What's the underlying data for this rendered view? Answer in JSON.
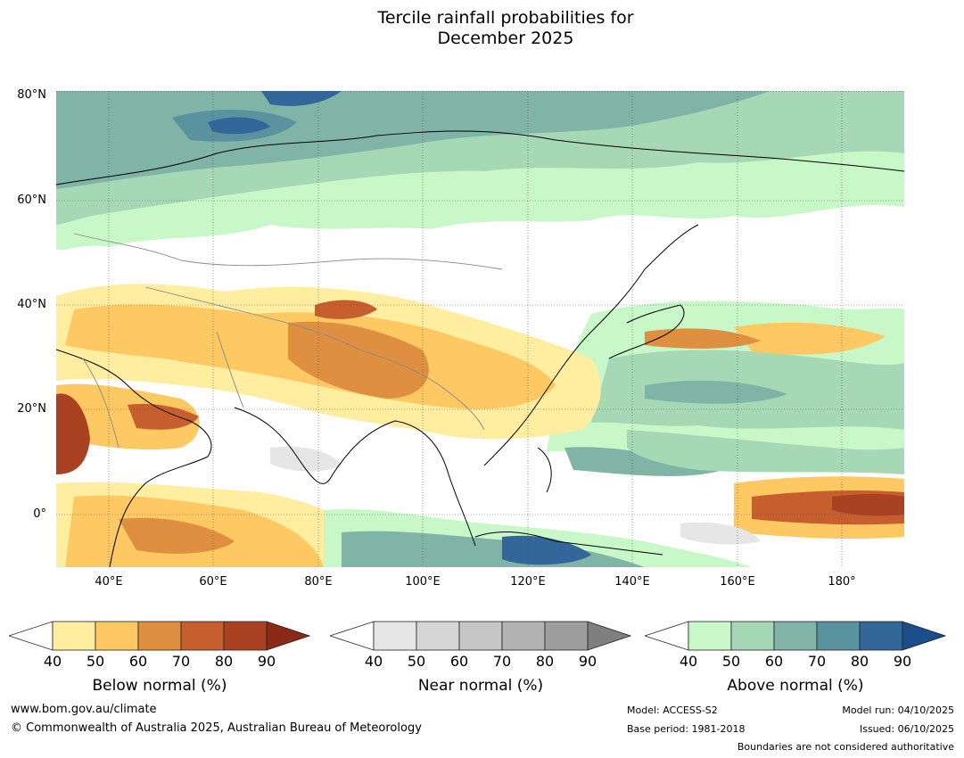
{
  "title_line1": "Tercile rainfall probabilities for",
  "title_line2": "December 2025",
  "map": {
    "lat_labels": [
      "80°N",
      "60°N",
      "40°N",
      "20°N",
      "0°"
    ],
    "lon_labels": [
      "40°E",
      "60°E",
      "80°E",
      "100°E",
      "120°E",
      "140°E",
      "160°E",
      "180°"
    ]
  },
  "legends": [
    {
      "title": "Below normal (%)",
      "ticks": [
        "40",
        "50",
        "60",
        "70",
        "80",
        "90"
      ],
      "colors": [
        "#ffeda0",
        "#fec962",
        "#de9040",
        "#c65e2e",
        "#aa4222",
        "#8a2a16"
      ]
    },
    {
      "title": "Near normal (%)",
      "ticks": [
        "40",
        "50",
        "60",
        "70",
        "80",
        "90"
      ],
      "colors": [
        "#e6e6e6",
        "#d6d6d6",
        "#c6c6c6",
        "#b3b3b3",
        "#9e9e9e",
        "#7f7f7f"
      ]
    },
    {
      "title": "Above normal (%)",
      "ticks": [
        "40",
        "50",
        "60",
        "70",
        "80",
        "90"
      ],
      "colors": [
        "#c8f7c8",
        "#a6d8b6",
        "#80b4a6",
        "#5a92a0",
        "#336699",
        "#1a4d8c"
      ]
    }
  ],
  "footer": {
    "website": "www.bom.gov.au/climate",
    "copyright": "© Commonwealth of Australia 2025, Australian Bureau of Meteorology",
    "model": "Model: ACCESS-S2",
    "base_period": "Base period: 1981-2018",
    "model_run": "Model run: 04/10/2025",
    "issued": "Issued: 06/10/2025",
    "disclaimer": "Boundaries are not considered authoritative"
  }
}
